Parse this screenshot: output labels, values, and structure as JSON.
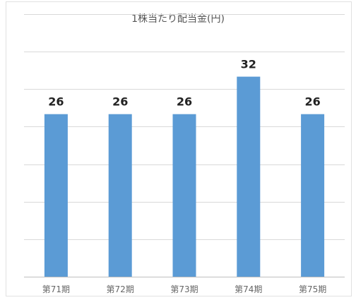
{
  "chart_data": {
    "type": "bar",
    "title": "1株当たり配当金(円)",
    "xlabel": "",
    "ylabel": "",
    "categories": [
      "第71期",
      "第72期",
      "第73期",
      "第74期",
      "第75期"
    ],
    "values": [
      26,
      26,
      26,
      32,
      26
    ],
    "ylim": [
      0,
      42
    ],
    "grid": true,
    "legend": "none",
    "colors": {
      "bar": "#5b9bd5",
      "grid": "#d9d9d9",
      "axis": "#bfbfbf"
    }
  }
}
